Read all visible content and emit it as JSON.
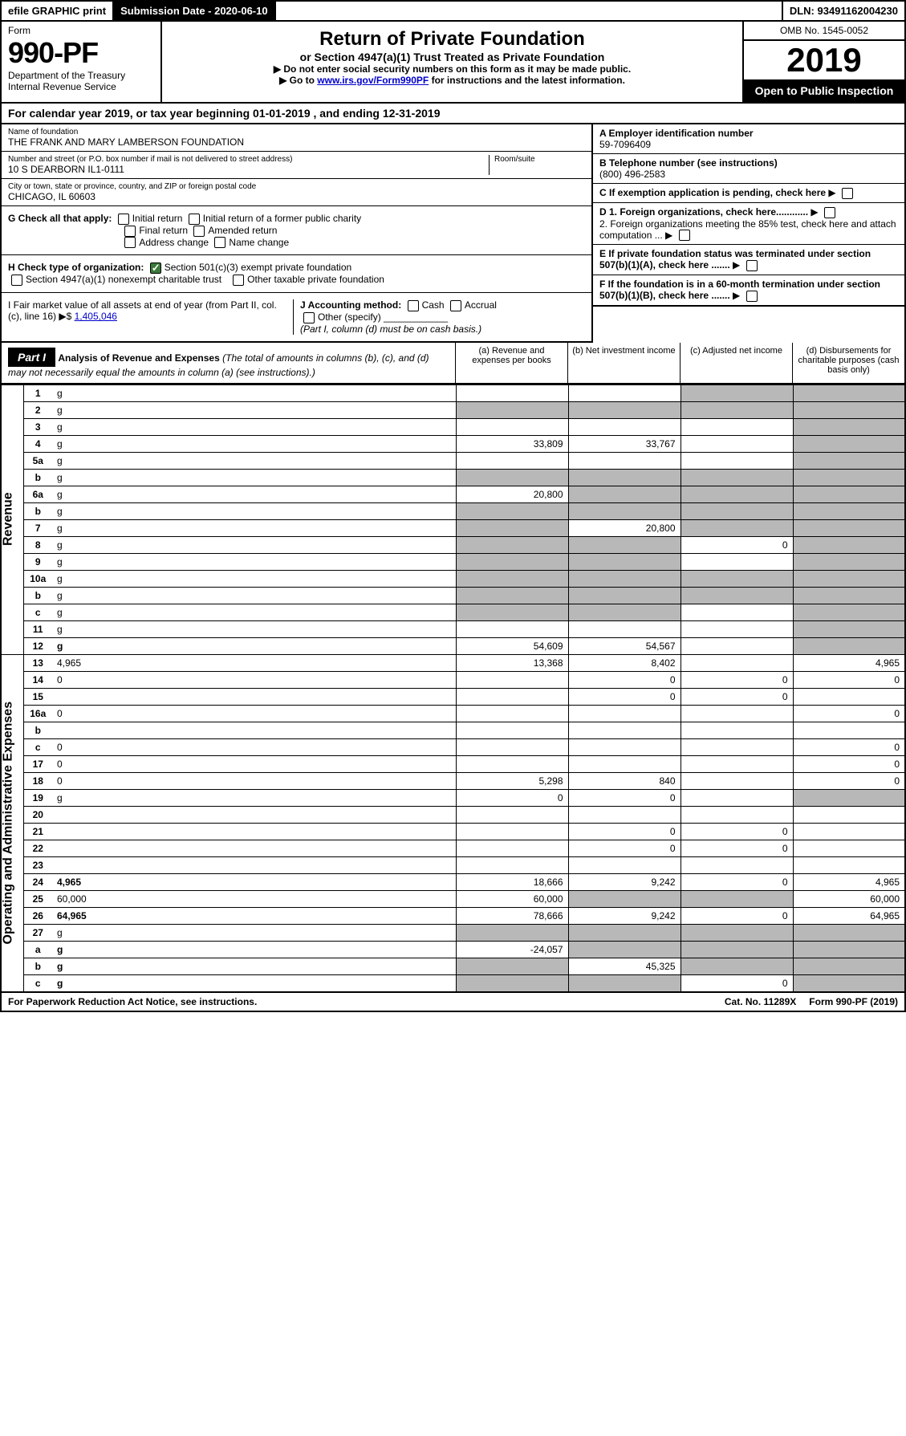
{
  "topbar": {
    "efile": "efile GRAPHIC print",
    "submission_label": "Submission Date - 2020-06-10",
    "dln": "DLN: 93491162004230"
  },
  "header": {
    "form_label": "Form",
    "form_num": "990-PF",
    "dept": "Department of the Treasury",
    "irs": "Internal Revenue Service",
    "title": "Return of Private Foundation",
    "subtitle": "or Section 4947(a)(1) Trust Treated as Private Foundation",
    "note1": "▶ Do not enter social security numbers on this form as it may be made public.",
    "note2_pre": "▶ Go to ",
    "note2_link": "www.irs.gov/Form990PF",
    "note2_post": " for instructions and the latest information.",
    "omb": "OMB No. 1545-0052",
    "year": "2019",
    "open": "Open to Public Inspection"
  },
  "cal": {
    "pre": "For calendar year 2019, or tax year beginning ",
    "begin": "01-01-2019",
    "mid": " , and ending ",
    "end": "12-31-2019"
  },
  "foundation": {
    "name_lbl": "Name of foundation",
    "name": "THE FRANK AND MARY LAMBERSON FOUNDATION",
    "addr_lbl": "Number and street (or P.O. box number if mail is not delivered to street address)",
    "room_lbl": "Room/suite",
    "addr": "10 S DEARBORN IL1-0111",
    "city_lbl": "City or town, state or province, country, and ZIP or foreign postal code",
    "city": "CHICAGO, IL  60603",
    "ein_lbl": "A Employer identification number",
    "ein": "59-7096409",
    "tel_lbl": "B Telephone number (see instructions)",
    "tel": "(800) 496-2583",
    "c_lbl": "C  If exemption application is pending, check here",
    "d1_lbl": "D 1. Foreign organizations, check here............",
    "d2_lbl": "2. Foreign organizations meeting the 85% test, check here and attach computation ...",
    "e_lbl": "E  If private foundation status was terminated under section 507(b)(1)(A), check here .......",
    "f_lbl": "F  If the foundation is in a 60-month termination under section 507(b)(1)(B), check here .......",
    "g_lbl": "G Check all that apply:",
    "g_opts": [
      "Initial return",
      "Initial return of a former public charity",
      "Final return",
      "Amended return",
      "Address change",
      "Name change"
    ],
    "h_lbl": "H Check type of organization:",
    "h_opt1": "Section 501(c)(3) exempt private foundation",
    "h_opt2": "Section 4947(a)(1) nonexempt charitable trust",
    "h_opt3": "Other taxable private foundation",
    "i_lbl": "I Fair market value of all assets at end of year (from Part II, col. (c), line 16) ▶$ ",
    "i_val": "1,405,046",
    "j_lbl": "J Accounting method:",
    "j_cash": "Cash",
    "j_accrual": "Accrual",
    "j_other": "Other (specify)",
    "j_note": "(Part I, column (d) must be on cash basis.)"
  },
  "part1": {
    "label": "Part I",
    "title": "Analysis of Revenue and Expenses",
    "title_note": " (The total of amounts in columns (b), (c), and (d) may not necessarily equal the amounts in column (a) (see instructions).)",
    "col_a": "(a)  Revenue and expenses per books",
    "col_b": "(b)  Net investment income",
    "col_c": "(c)  Adjusted net income",
    "col_d": "(d)  Disbursements for charitable purposes (cash basis only)"
  },
  "side_labels": {
    "revenue": "Revenue",
    "expenses": "Operating and Administrative Expenses"
  },
  "rows": [
    {
      "n": "1",
      "d": "g",
      "a": "",
      "b": "",
      "c": "g"
    },
    {
      "n": "2",
      "d": "g",
      "a": "g",
      "b": "g",
      "c": "g"
    },
    {
      "n": "3",
      "d": "g",
      "a": "",
      "b": "",
      "c": ""
    },
    {
      "n": "4",
      "d": "g",
      "a": "33,809",
      "b": "33,767",
      "c": ""
    },
    {
      "n": "5a",
      "d": "g",
      "a": "",
      "b": "",
      "c": ""
    },
    {
      "n": "b",
      "d": "g",
      "a": "g",
      "b": "g",
      "c": "g"
    },
    {
      "n": "6a",
      "d": "g",
      "a": "20,800",
      "b": "g",
      "c": "g"
    },
    {
      "n": "b",
      "d": "g",
      "a": "g",
      "b": "g",
      "c": "g"
    },
    {
      "n": "7",
      "d": "g",
      "a": "g",
      "b": "20,800",
      "c": "g"
    },
    {
      "n": "8",
      "d": "g",
      "a": "g",
      "b": "g",
      "c": "0"
    },
    {
      "n": "9",
      "d": "g",
      "a": "g",
      "b": "g",
      "c": ""
    },
    {
      "n": "10a",
      "d": "g",
      "a": "g",
      "b": "g",
      "c": "g"
    },
    {
      "n": "b",
      "d": "g",
      "a": "g",
      "b": "g",
      "c": "g"
    },
    {
      "n": "c",
      "d": "g",
      "a": "g",
      "b": "g",
      "c": ""
    },
    {
      "n": "11",
      "d": "g",
      "a": "",
      "b": "",
      "c": ""
    },
    {
      "n": "12",
      "d": "g",
      "a": "54,609",
      "b": "54,567",
      "c": "",
      "bold": true
    },
    {
      "n": "13",
      "d": "4,965",
      "a": "13,368",
      "b": "8,402",
      "c": ""
    },
    {
      "n": "14",
      "d": "0",
      "a": "",
      "b": "0",
      "c": "0"
    },
    {
      "n": "15",
      "d": "",
      "a": "",
      "b": "0",
      "c": "0"
    },
    {
      "n": "16a",
      "d": "0",
      "a": "",
      "b": "",
      "c": ""
    },
    {
      "n": "b",
      "d": "",
      "a": "",
      "b": "",
      "c": ""
    },
    {
      "n": "c",
      "d": "0",
      "a": "",
      "b": "",
      "c": ""
    },
    {
      "n": "17",
      "d": "0",
      "a": "",
      "b": "",
      "c": ""
    },
    {
      "n": "18",
      "d": "0",
      "a": "5,298",
      "b": "840",
      "c": ""
    },
    {
      "n": "19",
      "d": "g",
      "a": "0",
      "b": "0",
      "c": ""
    },
    {
      "n": "20",
      "d": "",
      "a": "",
      "b": "",
      "c": ""
    },
    {
      "n": "21",
      "d": "",
      "a": "",
      "b": "0",
      "c": "0"
    },
    {
      "n": "22",
      "d": "",
      "a": "",
      "b": "0",
      "c": "0"
    },
    {
      "n": "23",
      "d": "",
      "a": "",
      "b": "",
      "c": ""
    },
    {
      "n": "24",
      "d": "4,965",
      "a": "18,666",
      "b": "9,242",
      "c": "0",
      "bold": true
    },
    {
      "n": "25",
      "d": "60,000",
      "a": "60,000",
      "b": "g",
      "c": "g"
    },
    {
      "n": "26",
      "d": "64,965",
      "a": "78,666",
      "b": "9,242",
      "c": "0",
      "bold": true
    },
    {
      "n": "27",
      "d": "g",
      "a": "g",
      "b": "g",
      "c": "g"
    },
    {
      "n": "a",
      "d": "g",
      "a": "-24,057",
      "b": "g",
      "c": "g",
      "bold": true
    },
    {
      "n": "b",
      "d": "g",
      "a": "g",
      "b": "45,325",
      "c": "g",
      "bold": true
    },
    {
      "n": "c",
      "d": "g",
      "a": "g",
      "b": "g",
      "c": "0",
      "bold": true
    }
  ],
  "footer": {
    "pra": "For Paperwork Reduction Act Notice, see instructions.",
    "cat": "Cat. No. 11289X",
    "form": "Form 990-PF (2019)"
  }
}
